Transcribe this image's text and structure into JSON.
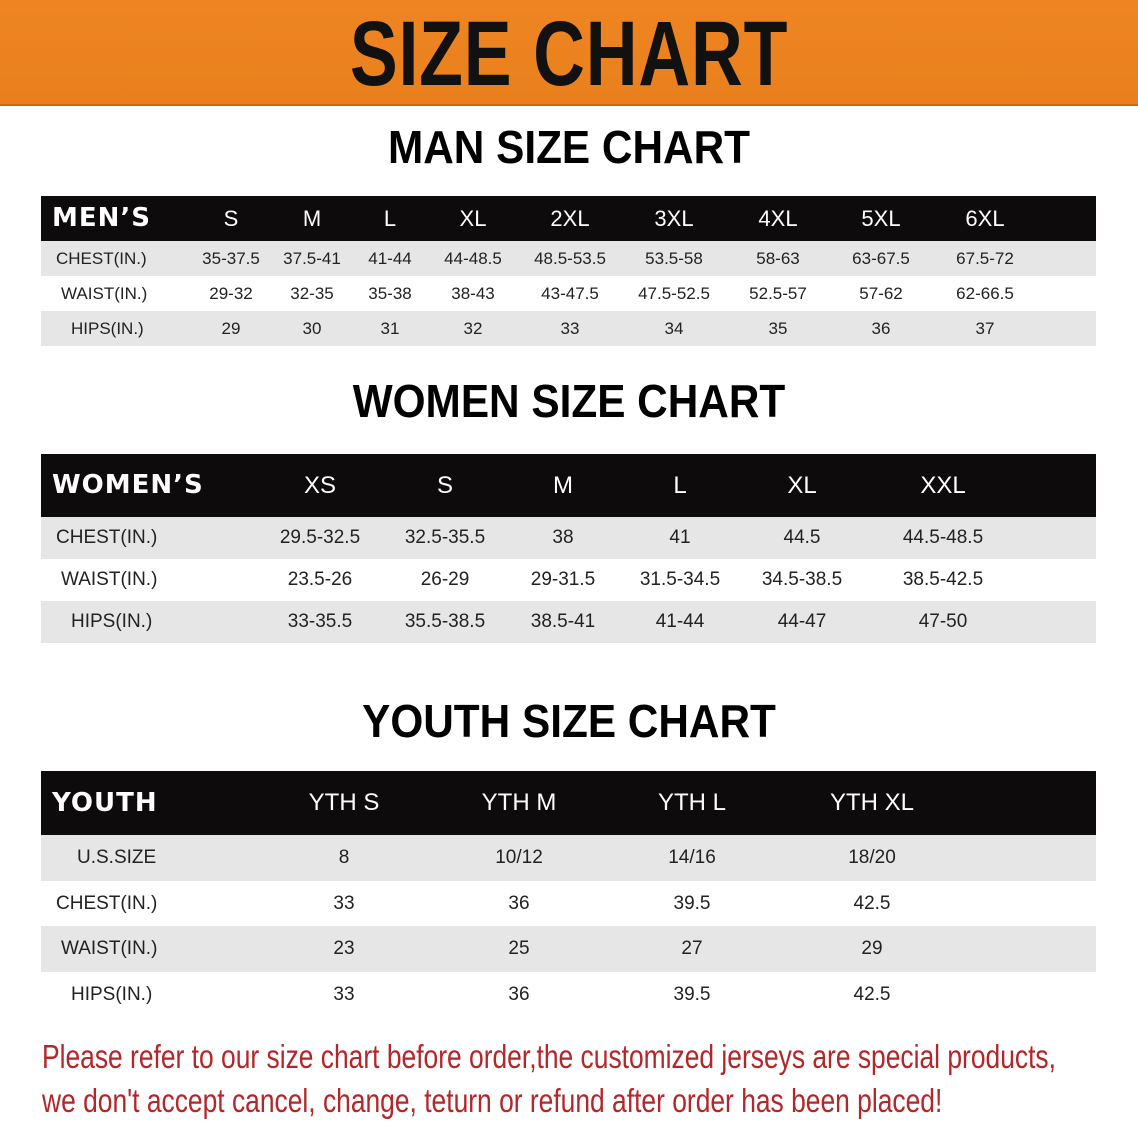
{
  "title": "SIZE CHART",
  "colors": {
    "banner": "#ec831f",
    "header_row": "#0d0b0b",
    "stripe": "#e6e6e6",
    "notice": "#b3262a"
  },
  "men": {
    "title": "MAN SIZE CHART",
    "header_label": "MEN’S",
    "sizes": [
      "S",
      "M",
      "L",
      "XL",
      "2XL",
      "3XL",
      "4XL",
      "5XL",
      "6XL"
    ],
    "rows": [
      {
        "label": "CHEST(IN.)",
        "values": [
          "35-37.5",
          "37.5-41",
          "41-44",
          "44-48.5",
          "48.5-53.5",
          "53.5-58",
          "58-63",
          "63-67.5",
          "67.5-72"
        ]
      },
      {
        "label": "WAIST(IN.)",
        "values": [
          "29-32",
          "32-35",
          "35-38",
          "38-43",
          "43-47.5",
          "47.5-52.5",
          "52.5-57",
          "57-62",
          "62-66.5"
        ]
      },
      {
        "label": "HIPS(IN.)",
        "values": [
          "29",
          "30",
          "31",
          "32",
          "33",
          "34",
          "35",
          "36",
          "37"
        ]
      }
    ]
  },
  "women": {
    "title": "WOMEN SIZE CHART",
    "header_label": "WOMEN’S",
    "sizes": [
      "XS",
      "S",
      "M",
      "L",
      "XL",
      "XXL"
    ],
    "rows": [
      {
        "label": "CHEST(IN.)",
        "values": [
          "29.5-32.5",
          "32.5-35.5",
          "38",
          "41",
          "44.5",
          "44.5-48.5"
        ]
      },
      {
        "label": "WAIST(IN.)",
        "values": [
          "23.5-26",
          "26-29",
          "29-31.5",
          "31.5-34.5",
          "34.5-38.5",
          "38.5-42.5"
        ]
      },
      {
        "label": "HIPS(IN.)",
        "values": [
          "33-35.5",
          "35.5-38.5",
          "38.5-41",
          "41-44",
          "44-47",
          "47-50"
        ]
      }
    ]
  },
  "youth": {
    "title": "YOUTH SIZE CHART",
    "header_label": "YOUTH",
    "sizes": [
      "YTH S",
      "YTH M",
      "YTH L",
      "YTH XL"
    ],
    "rows": [
      {
        "label": "U.S.SIZE",
        "values": [
          "8",
          "10/12",
          "14/16",
          "18/20"
        ]
      },
      {
        "label": "CHEST(IN.)",
        "values": [
          "33",
          "36",
          "39.5",
          "42.5"
        ]
      },
      {
        "label": "WAIST(IN.)",
        "values": [
          "23",
          "25",
          "27",
          "29"
        ]
      },
      {
        "label": "HIPS(IN.)",
        "values": [
          "33",
          "36",
          "39.5",
          "42.5"
        ]
      }
    ]
  },
  "notice": {
    "line1": "Please refer to our size chart before order,the customized jerseys are special products,",
    "line2": "we don't accept cancel, change, teturn or refund after order has been placed!"
  }
}
